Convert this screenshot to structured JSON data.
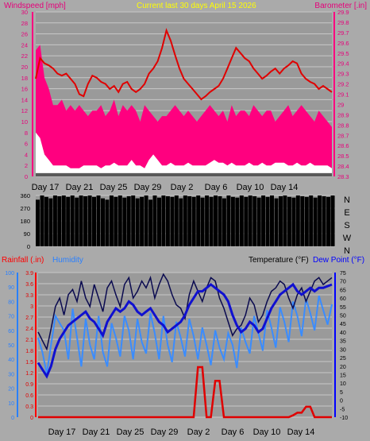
{
  "header": {
    "left_title": "Windspeed [mph]",
    "center_title": "Current last 30 days April 15 2026",
    "right_title": "Barometer [.in]"
  },
  "lower_header": {
    "rainfall": "Rainfall (.in)",
    "humidity": "Humidity",
    "temperature": "Temperature (°F)",
    "dewpoint": "Dew Point (°F)"
  },
  "colors": {
    "background": "#9a9a9a",
    "page": "#aaaaaa",
    "grid": "#c8c8c8",
    "wind_gust": "#ff007f",
    "wind_avg": "#ffffff",
    "wind_base": "#5a5a5a",
    "barometer": "#e00000",
    "direction": "#000000",
    "rain": "#e00000",
    "humidity": "#3a8cff",
    "temperature": "#0a0a50",
    "dewpoint": "#1010d0",
    "title_left": "#e6007a",
    "title_center": "#ffff00",
    "title_right": "#e6007a",
    "rain_label": "#ff0000",
    "humidity_label": "#2a80ff",
    "temp_label": "#000000",
    "dew_label": "#0000ff"
  },
  "chart_data": [
    {
      "type": "area",
      "name": "wind-barometer",
      "x_ticks": [
        "Day 17",
        "Day 21",
        "Day 25",
        "Day 29",
        "Day 2",
        "Day 6",
        "Day 10",
        "Day 14"
      ],
      "left_axis": {
        "label": "Windspeed [mph]",
        "ylim": [
          0,
          30
        ],
        "ticks": [
          0,
          2,
          4,
          6,
          8,
          10,
          12,
          14,
          16,
          18,
          20,
          22,
          24,
          26,
          28,
          30
        ]
      },
      "right_axis": {
        "label": "Barometer [.in]",
        "ylim": [
          28.3,
          29.9
        ],
        "ticks": [
          "28.3",
          "28.4",
          "28.5",
          "28.6",
          "28.7",
          "28.8",
          "28.9",
          "29",
          "29.1",
          "29.2",
          "29.3",
          "29.4",
          "29.5",
          "29.6",
          "29.7",
          "29.8",
          "29.9"
        ]
      },
      "series": [
        {
          "name": "Barometer",
          "axis": "right",
          "values": [
            29.25,
            29.45,
            29.4,
            29.38,
            29.35,
            29.3,
            29.28,
            29.3,
            29.25,
            29.2,
            29.1,
            29.08,
            29.2,
            29.28,
            29.26,
            29.22,
            29.2,
            29.15,
            29.18,
            29.12,
            29.2,
            29.22,
            29.15,
            29.12,
            29.15,
            29.2,
            29.3,
            29.35,
            29.42,
            29.55,
            29.72,
            29.62,
            29.48,
            29.35,
            29.25,
            29.2,
            29.15,
            29.1,
            29.05,
            29.08,
            29.12,
            29.15,
            29.18,
            29.25,
            29.35,
            29.45,
            29.55,
            29.5,
            29.45,
            29.42,
            29.35,
            29.3,
            29.25,
            29.28,
            29.32,
            29.35,
            29.3,
            29.35,
            29.38,
            29.42,
            29.4,
            29.3,
            29.25,
            29.22,
            29.2,
            29.15,
            29.18,
            29.15,
            29.12
          ]
        },
        {
          "name": "Wind gust",
          "axis": "left",
          "values": [
            23,
            24,
            18,
            16,
            13,
            13,
            14,
            12,
            13,
            12,
            13,
            12,
            11,
            12,
            12,
            13,
            11,
            12,
            14,
            11,
            13,
            12,
            13,
            12,
            10,
            13,
            12,
            11,
            10,
            11,
            11,
            12,
            13,
            12,
            11,
            12,
            11,
            10,
            11,
            12,
            13,
            12,
            11,
            12,
            10,
            13,
            11,
            12,
            12,
            11,
            13,
            12,
            11,
            12,
            12,
            10,
            11,
            12,
            13,
            11,
            12,
            13,
            12,
            11,
            10,
            12,
            11,
            10,
            9
          ]
        },
        {
          "name": "Wind average",
          "axis": "left",
          "values": [
            8,
            7,
            4,
            3,
            2,
            2,
            2,
            2,
            1.5,
            1.5,
            1.5,
            2,
            2,
            2,
            2,
            1.5,
            2,
            2,
            2.5,
            2,
            2,
            2,
            3,
            2,
            2,
            1.5,
            3,
            4,
            3,
            2,
            2,
            2.5,
            2,
            2,
            2,
            2.5,
            2,
            2,
            2,
            2,
            2.5,
            3,
            2.5,
            2.5,
            2,
            2.5,
            2,
            2,
            2,
            2.5,
            2,
            2,
            2.5,
            2,
            2,
            2.5,
            2.5,
            2.5,
            2,
            2,
            2.5,
            2,
            2,
            2.5,
            2,
            2,
            2,
            2,
            1.5
          ]
        }
      ]
    },
    {
      "type": "bar",
      "name": "wind-direction",
      "x_ticks": [
        "Day 17",
        "Day 21",
        "Day 25",
        "Day 29",
        "Day 2",
        "Day 6",
        "Day 10",
        "Day 14"
      ],
      "left_axis": {
        "ylim": [
          0,
          360
        ],
        "ticks": [
          0,
          90,
          180,
          270,
          360
        ]
      },
      "right_labels": [
        "N",
        "W",
        "S",
        "E",
        "N"
      ],
      "series": [
        {
          "name": "Wind direction",
          "values": [
            330,
            360,
            350,
            340,
            360,
            355,
            360,
            350,
            360,
            345,
            360,
            355,
            360,
            350,
            360,
            340,
            330,
            360,
            350,
            360,
            345,
            355,
            360,
            340,
            350,
            360,
            330,
            360,
            345,
            360,
            355,
            350,
            360,
            340,
            360,
            355,
            350,
            360,
            345,
            360,
            350,
            360,
            355,
            340,
            360,
            350,
            345,
            360,
            350,
            360,
            355,
            345,
            360,
            350,
            360,
            340,
            355,
            360,
            350,
            345,
            360,
            355,
            350,
            360,
            345,
            360,
            355,
            350,
            360
          ]
        }
      ]
    },
    {
      "type": "line",
      "name": "rain-humidity-temperature",
      "x_ticks": [
        "Day 17",
        "Day 21",
        "Day 25",
        "Day 29",
        "Day 2",
        "Day 6",
        "Day 10",
        "Day 14"
      ],
      "left_axis_humidity": {
        "label": "Humidity",
        "ylim": [
          0,
          100
        ],
        "ticks": [
          0,
          10,
          20,
          30,
          40,
          50,
          60,
          70,
          80,
          90,
          100
        ]
      },
      "left_axis_rain": {
        "label": "Rainfall (.in)",
        "ylim": [
          0,
          3.9
        ],
        "ticks": [
          "0",
          "0.3",
          "0.6",
          "0.9",
          "1.2",
          "1.5",
          "1.8",
          "2.1",
          "2.4",
          "2.7",
          "3",
          "3.3",
          "3.6",
          "3.9"
        ]
      },
      "right_axis": {
        "label": "Temperature (°F) Dew Point (°F)",
        "ylim": [
          -10,
          75
        ],
        "ticks": [
          -10,
          -5,
          0,
          5,
          10,
          15,
          20,
          25,
          30,
          35,
          40,
          45,
          50,
          55,
          60,
          65,
          70,
          75
        ]
      },
      "series": [
        {
          "name": "Temperature",
          "axis": "right",
          "values": [
            40,
            35,
            30,
            42,
            55,
            60,
            50,
            62,
            65,
            58,
            70,
            60,
            55,
            68,
            60,
            52,
            66,
            70,
            62,
            55,
            68,
            72,
            60,
            64,
            70,
            66,
            72,
            60,
            68,
            74,
            70,
            62,
            56,
            54,
            48,
            62,
            70,
            64,
            58,
            66,
            72,
            70,
            60,
            54,
            46,
            38,
            42,
            44,
            50,
            60,
            56,
            46,
            50,
            58,
            64,
            66,
            70,
            68,
            60,
            54,
            62,
            66,
            58,
            64,
            70,
            72,
            68,
            70,
            72
          ]
        },
        {
          "name": "Dew Point",
          "axis": "right",
          "values": [
            22,
            18,
            14,
            20,
            30,
            36,
            40,
            44,
            46,
            48,
            50,
            52,
            48,
            46,
            42,
            38,
            46,
            50,
            54,
            52,
            54,
            58,
            56,
            52,
            50,
            52,
            54,
            50,
            46,
            44,
            40,
            42,
            44,
            46,
            50,
            56,
            60,
            64,
            64,
            66,
            68,
            66,
            64,
            62,
            58,
            50,
            44,
            40,
            42,
            46,
            44,
            40,
            42,
            48,
            54,
            58,
            62,
            64,
            66,
            68,
            64,
            62,
            64,
            66,
            64,
            66,
            66,
            67,
            68
          ]
        },
        {
          "name": "Humidity",
          "axis": "left",
          "values": [
            55,
            45,
            30,
            50,
            70,
            65,
            60,
            40,
            75,
            55,
            35,
            68,
            50,
            40,
            70,
            45,
            35,
            65,
            55,
            42,
            70,
            60,
            40,
            68,
            52,
            44,
            72,
            58,
            40,
            70,
            50,
            38,
            66,
            55,
            42,
            68,
            56,
            40,
            62,
            50,
            36,
            60,
            48,
            40,
            58,
            50,
            34,
            62,
            52,
            44,
            70,
            58,
            46,
            74,
            62,
            48,
            76,
            66,
            52,
            80,
            70,
            56,
            82,
            72,
            60,
            84,
            74,
            64,
            78
          ]
        },
        {
          "name": "Rainfall",
          "axis": "left_rain",
          "values": [
            0,
            0,
            0,
            0,
            0,
            0,
            0,
            0,
            0,
            0,
            0,
            0,
            0,
            0,
            0,
            0,
            0,
            0,
            0,
            0,
            0,
            0,
            0,
            0,
            0,
            0,
            0,
            0,
            0,
            0,
            0,
            0,
            0,
            0,
            0,
            0,
            0,
            1.35,
            1.35,
            0,
            0,
            0.98,
            0.98,
            0,
            0,
            0,
            0,
            0,
            0,
            0,
            0,
            0,
            0,
            0,
            0,
            0,
            0,
            0,
            0,
            0.05,
            0.12,
            0.12,
            0.28,
            0.28,
            0,
            0,
            0,
            0,
            0
          ]
        }
      ]
    }
  ]
}
